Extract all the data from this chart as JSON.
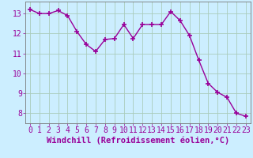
{
  "x": [
    0,
    1,
    2,
    3,
    4,
    5,
    6,
    7,
    8,
    9,
    10,
    11,
    12,
    13,
    14,
    15,
    16,
    17,
    18,
    19,
    20,
    21,
    22,
    23
  ],
  "y": [
    13.2,
    13.0,
    13.0,
    13.15,
    12.9,
    12.1,
    11.45,
    11.1,
    11.7,
    11.75,
    12.45,
    11.75,
    12.45,
    12.45,
    12.45,
    13.1,
    12.65,
    11.9,
    10.65,
    9.5,
    9.05,
    8.8,
    8.0,
    7.85
  ],
  "line_color": "#990099",
  "marker": "+",
  "marker_size": 4,
  "marker_linewidth": 1.2,
  "line_width": 1.0,
  "bg_color": "#cceeff",
  "grid_color": "#aaccbb",
  "xlabel": "Windchill (Refroidissement éolien,°C)",
  "xlabel_fontsize": 7.5,
  "tick_fontsize": 7,
  "xlim": [
    -0.5,
    23.5
  ],
  "ylim": [
    7.5,
    13.6
  ],
  "yticks": [
    8,
    9,
    10,
    11,
    12,
    13
  ],
  "xticks": [
    0,
    1,
    2,
    3,
    4,
    5,
    6,
    7,
    8,
    9,
    10,
    11,
    12,
    13,
    14,
    15,
    16,
    17,
    18,
    19,
    20,
    21,
    22,
    23
  ],
  "spine_color": "#777777"
}
